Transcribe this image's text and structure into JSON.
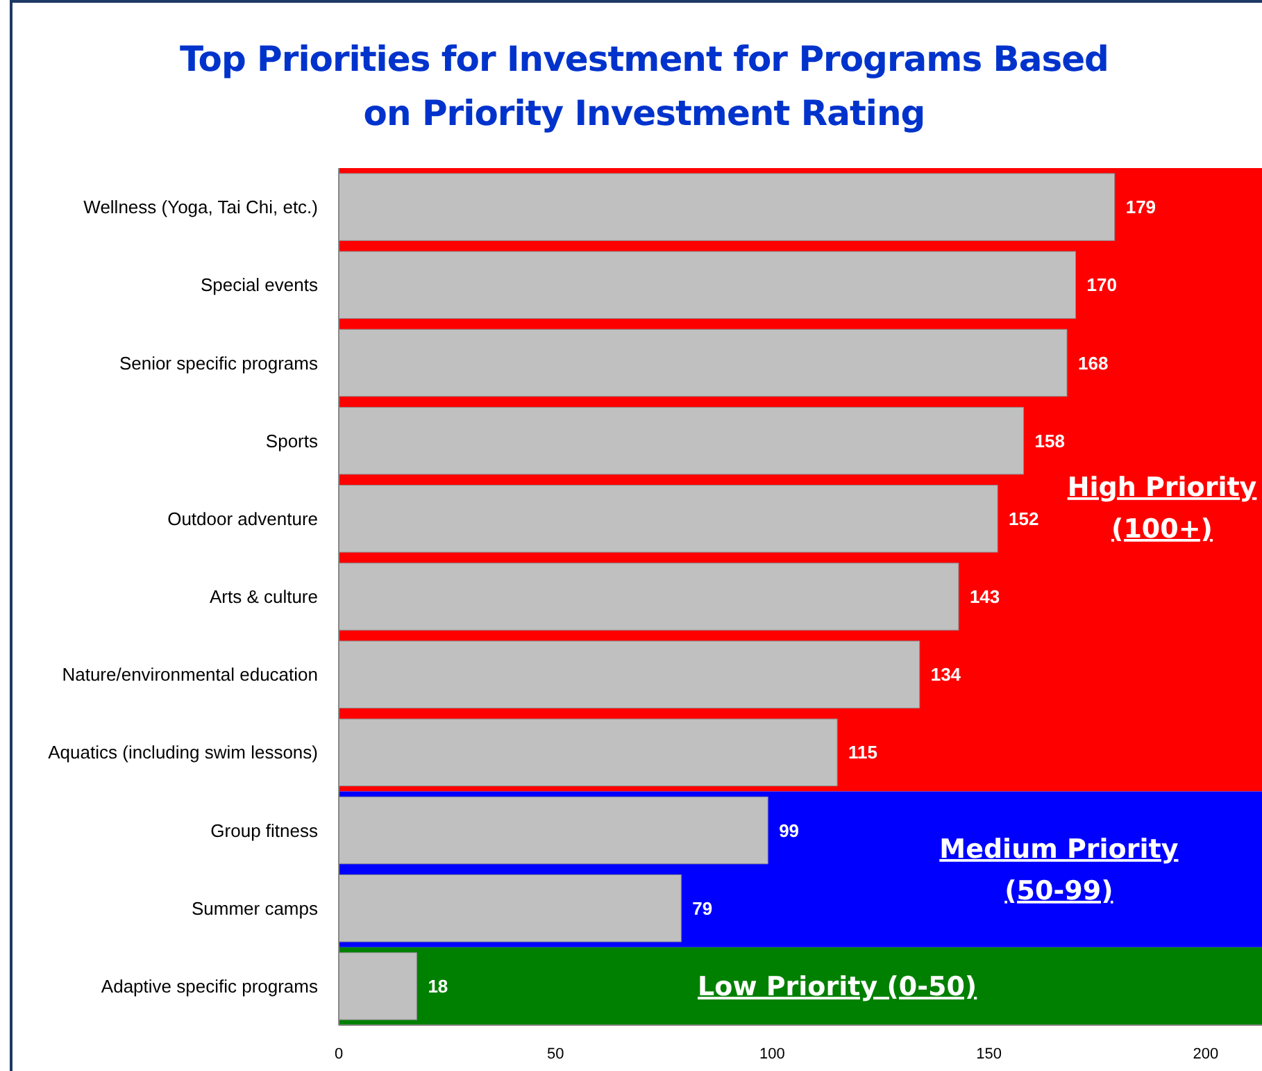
{
  "chart_data": {
    "type": "bar",
    "orientation": "horizontal",
    "title": "Top Priorities for Investment for Programs Based on Priority Investment Rating",
    "categories": [
      "Wellness (Yoga, Tai Chi, etc.)",
      "Special events",
      "Senior specific programs",
      "Sports",
      "Outdoor adventure",
      "Arts & culture",
      "Nature/environmental education",
      "Aquatics (including swim lessons)",
      "Group fitness",
      "Summer camps",
      "Adaptive specific programs"
    ],
    "values": [
      179,
      170,
      168,
      158,
      152,
      143,
      134,
      115,
      99,
      79,
      18
    ],
    "color": "#c0c0c0",
    "data_labels": true,
    "xlim": [
      0,
      213
    ],
    "xticks": [
      0,
      50,
      100,
      150,
      200
    ],
    "grid": false,
    "bands": [
      {
        "axis": "y",
        "from": "Wellness (Yoga, Tai Chi, etc.)",
        "to": "Aquatics (including swim lessons)",
        "label": "High Priority (100+)",
        "color": "#ff0000"
      },
      {
        "axis": "y",
        "from": "Group fitness",
        "to": "Summer camps",
        "label": "Medium Priority (50-99)",
        "color": "#0000ff"
      },
      {
        "axis": "y",
        "from": "Adaptive specific programs",
        "to": "Adaptive specific programs",
        "label": "Low Priority (0-50)",
        "color": "#008000"
      }
    ]
  }
}
